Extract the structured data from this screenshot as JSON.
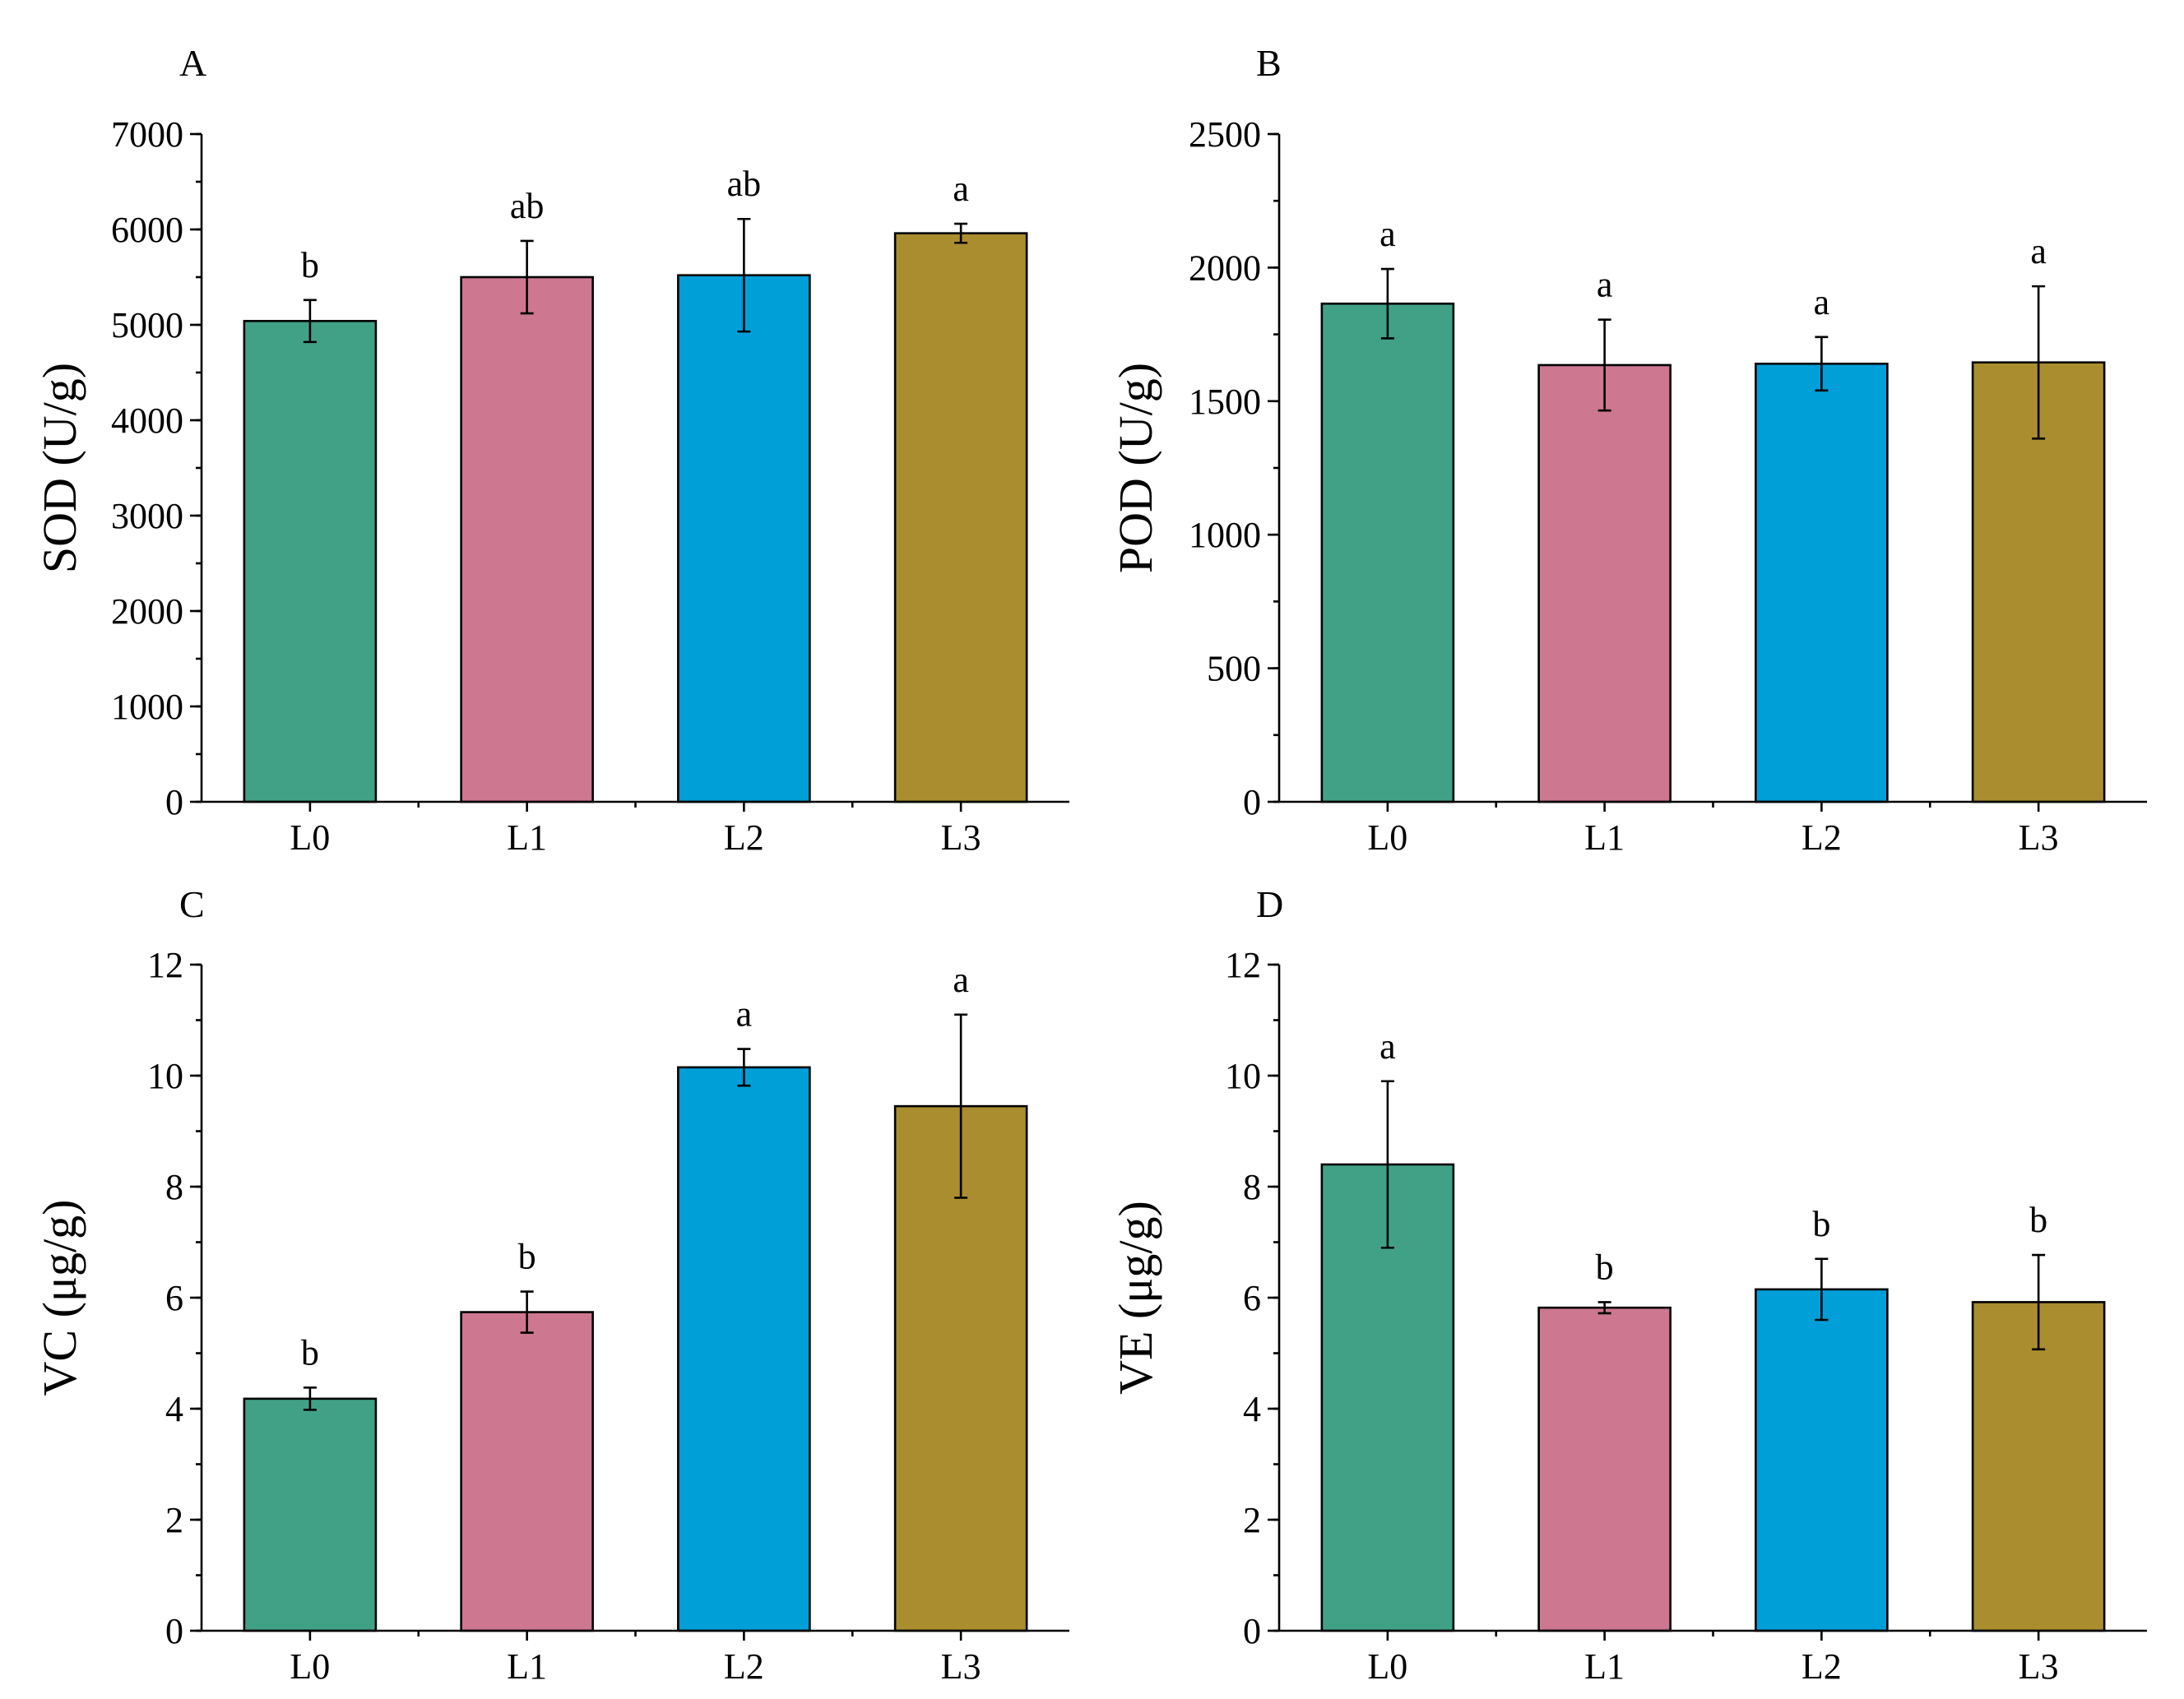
{
  "colors": {
    "L0": "#41A186",
    "L1": "#CE7791",
    "L2": "#009FD8",
    "L3": "#AA8D2E"
  },
  "chart_data": [
    {
      "panel": "A",
      "type": "bar",
      "ylabel": "SOD (U/g)",
      "categories": [
        "L0",
        "L1",
        "L2",
        "L3"
      ],
      "values": [
        5040,
        5500,
        5520,
        5960
      ],
      "errors": [
        220,
        380,
        590,
        100
      ],
      "significance": [
        "b",
        "ab",
        "ab",
        "a"
      ],
      "ylim": [
        0,
        7000
      ],
      "yticks": [
        0,
        1000,
        2000,
        3000,
        4000,
        5000,
        6000,
        7000
      ],
      "minor_step": 500
    },
    {
      "panel": "B",
      "type": "bar",
      "ylabel": "POD (U/g)",
      "categories": [
        "L0",
        "L1",
        "L2",
        "L3"
      ],
      "values": [
        1865,
        1635,
        1640,
        1645
      ],
      "errors": [
        130,
        170,
        100,
        285
      ],
      "significance": [
        "a",
        "a",
        "a",
        "a"
      ],
      "ylim": [
        0,
        2500
      ],
      "yticks": [
        0,
        500,
        1000,
        1500,
        2000,
        2500
      ],
      "minor_step": 250
    },
    {
      "panel": "C",
      "type": "bar",
      "ylabel": "VC (μg/g)",
      "categories": [
        "L0",
        "L1",
        "L2",
        "L3"
      ],
      "values": [
        4.18,
        5.74,
        10.15,
        9.45
      ],
      "errors": [
        0.2,
        0.37,
        0.33,
        1.65
      ],
      "significance": [
        "b",
        "b",
        "a",
        "a"
      ],
      "ylim": [
        0,
        12
      ],
      "yticks": [
        0,
        2,
        4,
        6,
        8,
        10,
        12
      ],
      "minor_step": 1
    },
    {
      "panel": "D",
      "type": "bar",
      "ylabel": "VE (μg/g)",
      "categories": [
        "L0",
        "L1",
        "L2",
        "L3"
      ],
      "values": [
        8.4,
        5.82,
        6.15,
        5.92
      ],
      "errors": [
        1.5,
        0.1,
        0.55,
        0.85
      ],
      "significance": [
        "a",
        "b",
        "b",
        "b"
      ],
      "ylim": [
        0,
        12
      ],
      "yticks": [
        0,
        2,
        4,
        6,
        8,
        10,
        12
      ],
      "minor_step": 1
    }
  ]
}
